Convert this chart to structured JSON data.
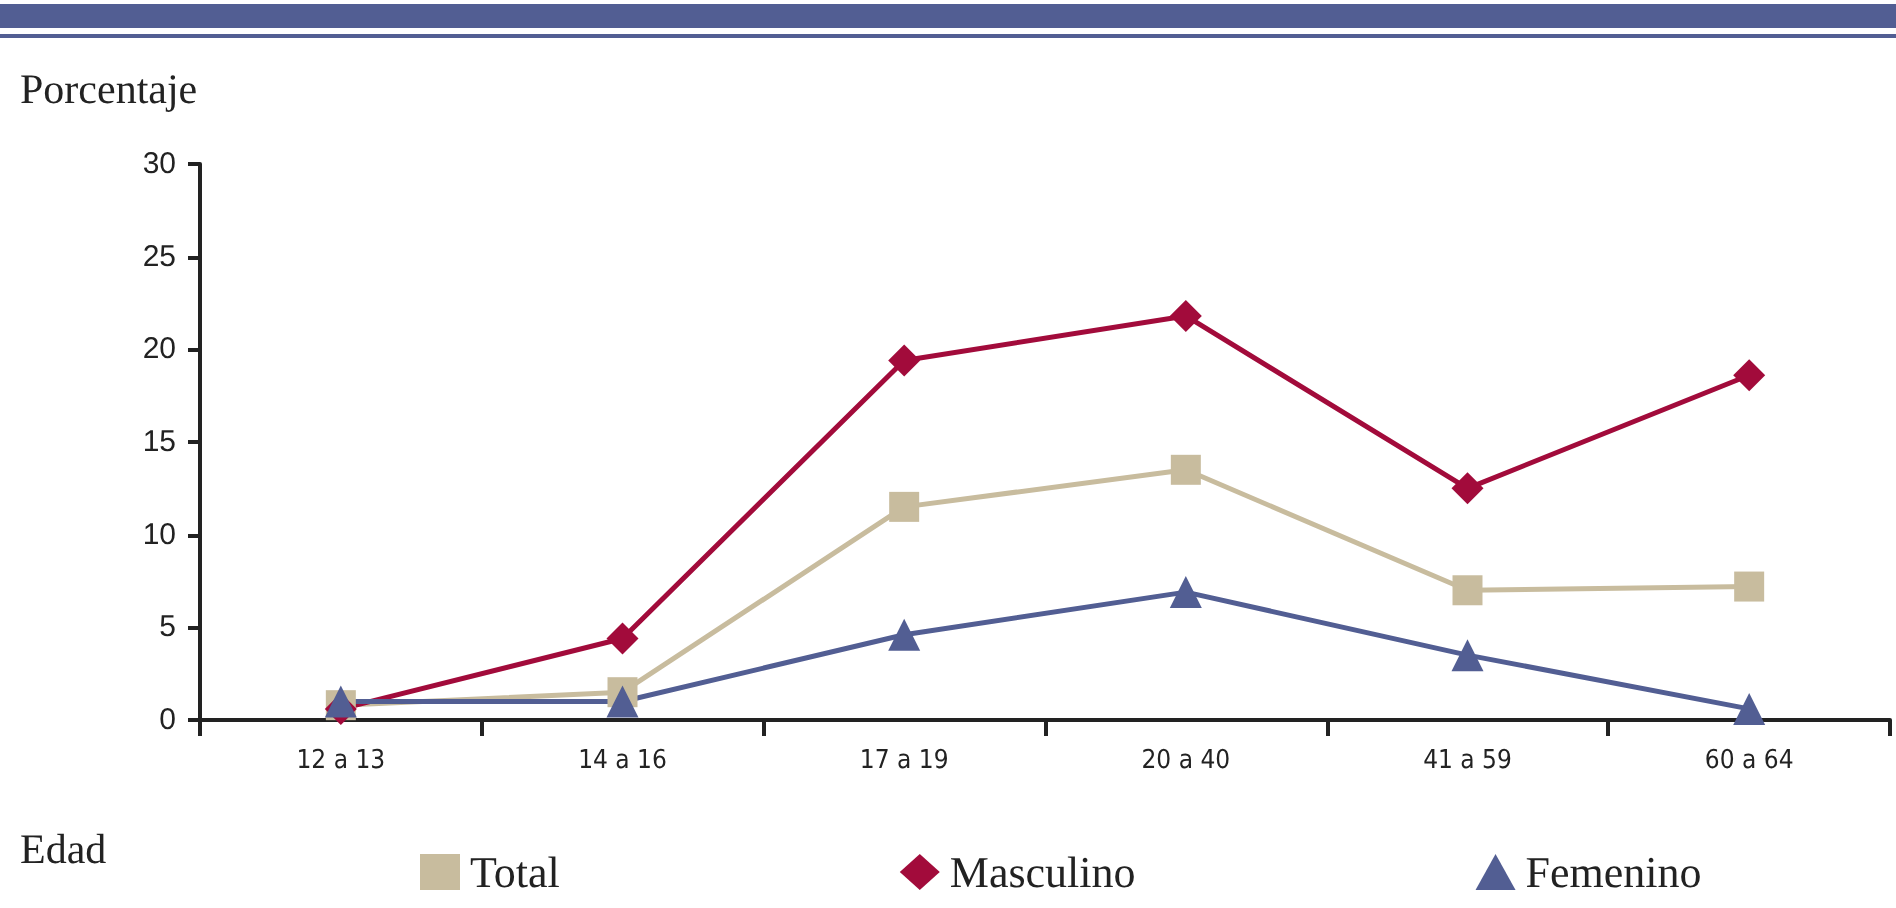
{
  "chart_data": {
    "type": "line",
    "xlabel": "Edad",
    "ylabel": "Porcentaje",
    "categories": [
      "12 a 13",
      "14 a 16",
      "17 a 19",
      "20 a 40",
      "41 a 59",
      "60 a 64"
    ],
    "series": [
      {
        "name": "Total",
        "color": "#c8bc9e",
        "marker": "square",
        "values": [
          0.8,
          1.5,
          11.5,
          13.5,
          7.0,
          7.2
        ]
      },
      {
        "name": "Masculino",
        "color": "#a20b3b",
        "marker": "diamond",
        "values": [
          0.6,
          4.4,
          19.4,
          21.8,
          12.5,
          18.6
        ]
      },
      {
        "name": "Femenino",
        "color": "#525e93",
        "marker": "triangle",
        "values": [
          1.0,
          1.0,
          4.6,
          6.9,
          3.5,
          0.6
        ]
      }
    ],
    "ylim": [
      0,
      30
    ],
    "yticks": [
      0,
      5,
      10,
      15,
      20,
      25,
      30
    ],
    "grid": false,
    "legend": "bottom"
  }
}
